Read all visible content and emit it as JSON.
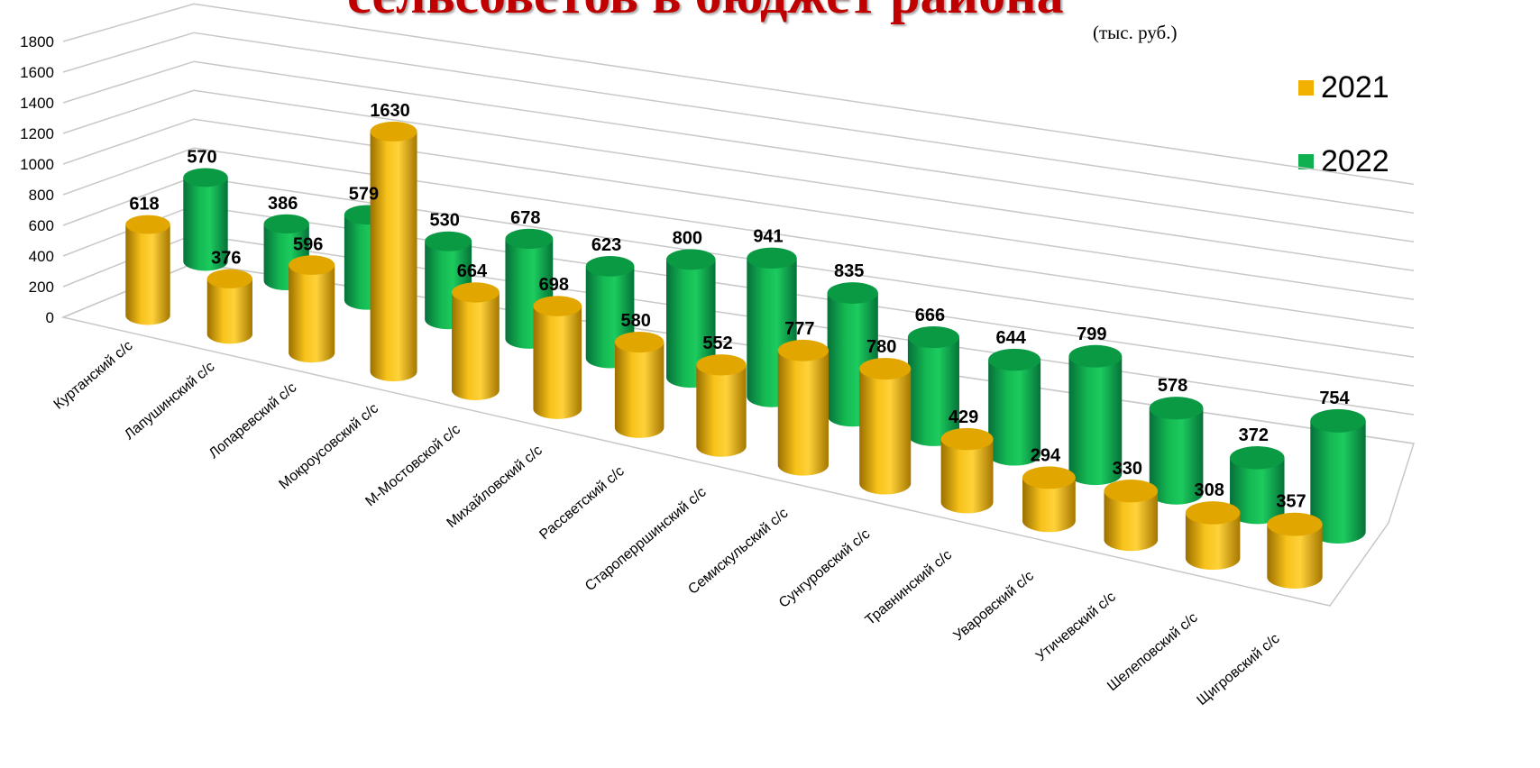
{
  "title": "сельсоветов в бюджет района",
  "unit": "(тыс. руб.)",
  "colors": {
    "y2021": "#f2b100",
    "y2022": "#0fb04f",
    "grid": "#c8c8c8"
  },
  "chart_data": {
    "type": "bar",
    "style": "3d-cylinder",
    "ylim": [
      0,
      1800
    ],
    "yticks": [
      "0",
      "200",
      "400",
      "600",
      "800",
      "1000",
      "1200",
      "1400",
      "1600",
      "1800"
    ],
    "categories": [
      "Куртанский с/с",
      "Лапушинский с/с",
      "Лопаревский с/с",
      "Мокроусовский с/с",
      "М-Мостовской с/с",
      "Михайловский с/с",
      "Рассветский с/с",
      "Староперршинский с/с",
      "Семискульский с/с",
      "Сунгуровский с/с",
      "Травнинский с/с",
      "Уваровский с/с",
      "Утичевский с/с",
      "Шелеповский с/с",
      "Щигровский с/с"
    ],
    "series": [
      {
        "name": "2021",
        "values": [
          618,
          376,
          596,
          1630,
          664,
          698,
          580,
          552,
          777,
          780,
          429,
          294,
          330,
          308,
          357
        ]
      },
      {
        "name": "2022",
        "values": [
          570,
          386,
          579,
          530,
          678,
          623,
          800,
          941,
          835,
          666,
          644,
          799,
          578,
          372,
          754
        ]
      }
    ],
    "legend": "right",
    "grid": true
  }
}
